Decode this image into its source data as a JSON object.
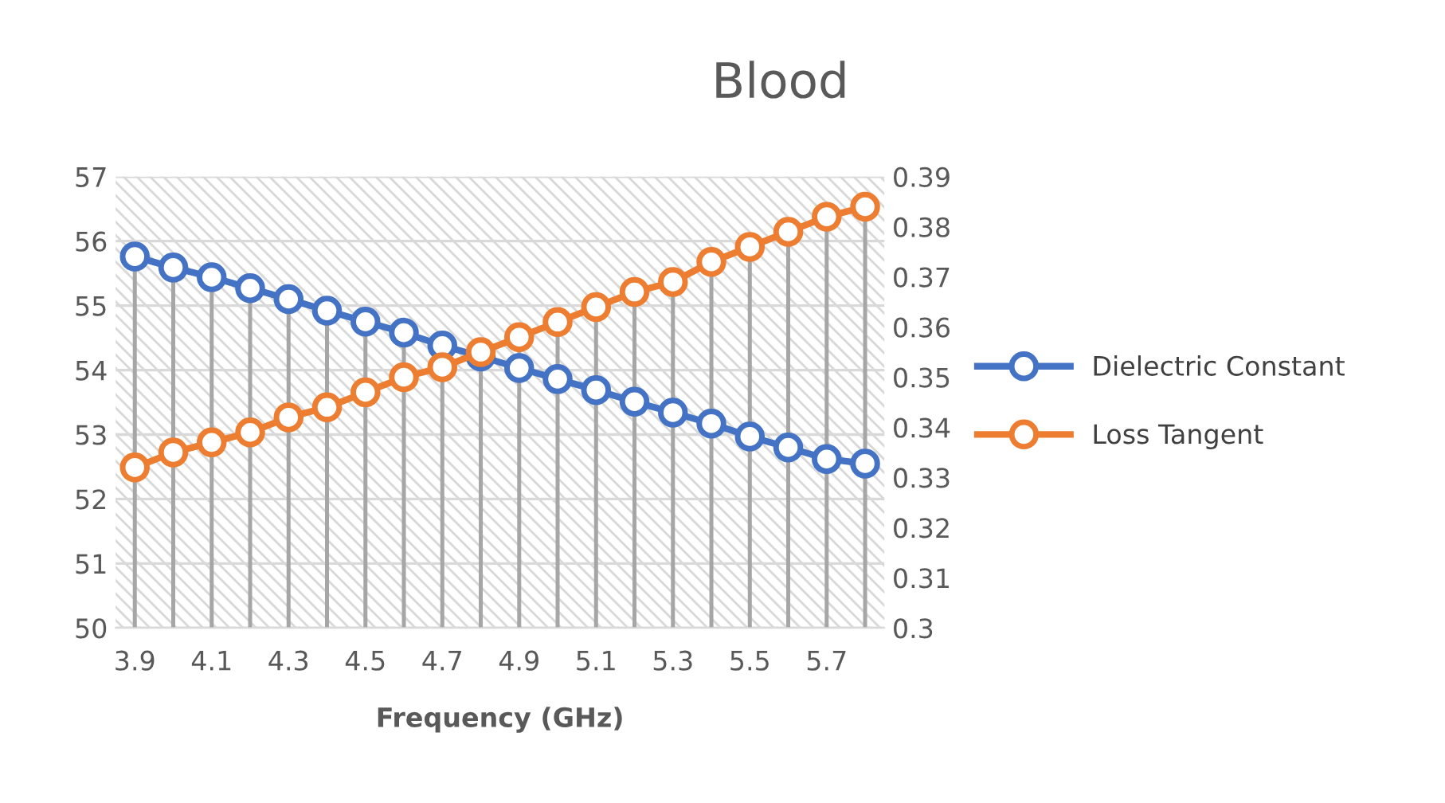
{
  "chart_data": {
    "type": "line",
    "title": "Blood",
    "xlabel": "Frequency (GHz)",
    "categories": [
      "3.9",
      null,
      "4.1",
      null,
      "4.3",
      null,
      "4.5",
      null,
      "4.7",
      null,
      "4.9",
      null,
      "5.1",
      null,
      "5.3",
      null,
      "5.5",
      null,
      "5.7",
      null
    ],
    "series": [
      {
        "name": "Dielectric Constant",
        "color": "#4472c4",
        "values": [
          55.76,
          55.59,
          55.44,
          55.27,
          55.1,
          54.92,
          54.75,
          54.58,
          54.38,
          54.21,
          54.03,
          53.86,
          53.69,
          53.51,
          53.34,
          53.17,
          52.97,
          52.8,
          52.62,
          52.55
        ]
      },
      {
        "name": "Loss Tangent",
        "color": "#ed7d31",
        "axis": "y2",
        "values": [
          0.332,
          0.335,
          0.337,
          0.339,
          0.342,
          0.344,
          0.347,
          0.35,
          0.352,
          0.355,
          0.358,
          0.361,
          0.364,
          0.367,
          0.369,
          0.373,
          0.376,
          0.379,
          0.382,
          0.384
        ]
      }
    ],
    "ylim": [
      50,
      57
    ],
    "yticks": [
      50,
      51,
      52,
      53,
      54,
      55,
      56,
      57
    ],
    "y2lim": [
      0.3,
      0.39
    ],
    "y2ticks": [
      0.3,
      0.31,
      0.32,
      0.33,
      0.34,
      0.35,
      0.36,
      0.37,
      0.38,
      0.39
    ],
    "grid": true,
    "legend": "right",
    "marker": "circle",
    "line_style": "solid"
  }
}
